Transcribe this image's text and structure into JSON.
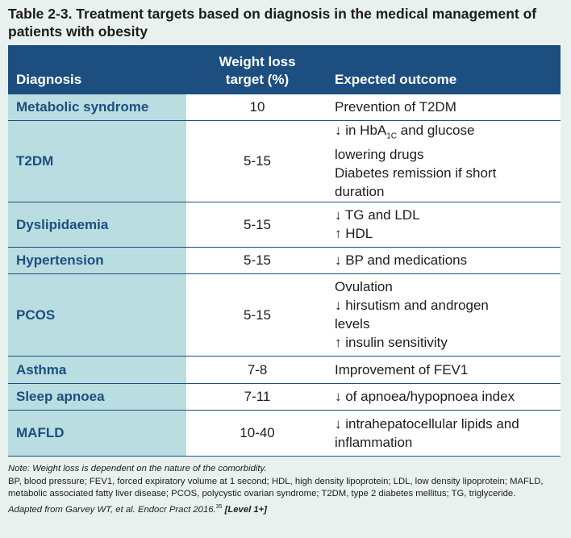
{
  "title": "Table 2-3. Treatment targets based on diagnosis in the medical management of patients with obesity",
  "headers": {
    "diagnosis": "Diagnosis",
    "weight_line1": "Weight loss",
    "weight_line2": "target (%)",
    "outcome": "Expected outcome"
  },
  "rows": [
    {
      "diagnosis": "Metabolic syndrome",
      "target": "10",
      "outcome": [
        "Prevention of T2DM"
      ]
    },
    {
      "diagnosis": "T2DM",
      "target": "5-15",
      "outcome": [
        "↓ in HbA1C and glucose",
        "lowering drugs",
        "Diabetes remission if short",
        "duration"
      ]
    },
    {
      "diagnosis": "Dyslipidaemia",
      "target": "5-15",
      "outcome": [
        "↓ TG and LDL",
        "↑ HDL"
      ]
    },
    {
      "diagnosis": "Hypertension",
      "target": "5-15",
      "outcome": [
        "↓ BP and medications"
      ]
    },
    {
      "diagnosis": "PCOS",
      "target": "5-15",
      "outcome": [
        "Ovulation",
        "↓ hirsutism and androgen",
        "levels",
        "↑ insulin sensitivity"
      ]
    },
    {
      "diagnosis": "Asthma",
      "target": "7-8",
      "outcome": [
        "Improvement of FEV1"
      ]
    },
    {
      "diagnosis": "Sleep apnoea",
      "target": "7-11",
      "outcome": [
        "↓ of apnoea/hypopnoea index"
      ]
    },
    {
      "diagnosis": "MAFLD",
      "target": "10-40",
      "outcome": [
        "↓ intrahepatocellular lipids and",
        "inflammation"
      ]
    }
  ],
  "notes": {
    "note": "Note: Weight loss is dependent on the nature of the comorbidity.",
    "abbrev": "BP, blood pressure; FEV1, forced expiratory volume at 1 second; HDL, high density lipoprotein; LDL, low density lipoprotein; MAFLD, metabolic associated fatty liver disease; PCOS, polycystic ovarian syndrome; T2DM, type 2 diabetes mellitus; TG, triglyceride.",
    "source": "Adapted from Garvey WT, et al. Endocr Pract 2016.",
    "source_ref": "35",
    "level": "[Level 1+]"
  }
}
